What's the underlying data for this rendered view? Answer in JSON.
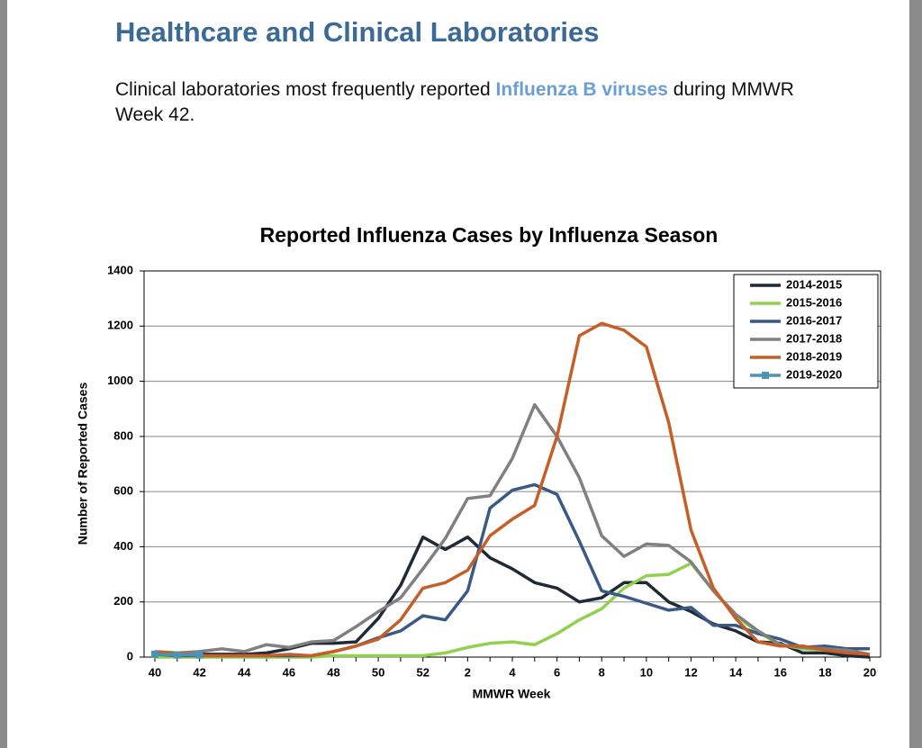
{
  "heading": "Healthcare and Clinical Laboratories",
  "paragraph": {
    "before": "Clinical laboratories most frequently reported ",
    "highlight": "Influenza B viruses",
    "after": " during MMWR Week 42."
  },
  "chart_data": {
    "type": "line",
    "title": "Reported Influenza Cases by Influenza Season",
    "x_label": "MMWR Week",
    "y_label": "Number of Reported Cases",
    "categories": [
      "40",
      null,
      "42",
      null,
      "44",
      null,
      "46",
      null,
      "48",
      null,
      "50",
      null,
      "52",
      null,
      "2",
      null,
      "4",
      null,
      "6",
      null,
      "8",
      null,
      "10",
      null,
      "12",
      null,
      "14",
      null,
      "16",
      null,
      "18",
      null,
      "20"
    ],
    "ylim": [
      0,
      1400
    ],
    "yticks": [
      0,
      200,
      400,
      600,
      800,
      1000,
      1200,
      1400
    ],
    "grid": true,
    "legend": "upper right",
    "series": [
      {
        "name": "2014-2015",
        "color": "#1f2a36",
        "values": [
          15,
          10,
          10,
          10,
          10,
          15,
          30,
          50,
          50,
          55,
          140,
          260,
          435,
          390,
          435,
          360,
          320,
          270,
          250,
          200,
          215,
          270,
          270,
          200,
          165,
          120,
          95,
          55,
          50,
          15,
          15,
          5,
          0
        ]
      },
      {
        "name": "2015-2016",
        "color": "#92d050",
        "values": [
          0,
          0,
          0,
          0,
          0,
          0,
          0,
          0,
          5,
          5,
          5,
          5,
          5,
          15,
          35,
          50,
          55,
          45,
          85,
          135,
          175,
          250,
          295,
          300,
          340,
          240,
          150,
          90,
          45,
          30,
          25,
          20,
          10
        ]
      },
      {
        "name": "2016-2017",
        "color": "#3a5a85",
        "values": [
          10,
          5,
          5,
          5,
          5,
          5,
          5,
          5,
          20,
          40,
          70,
          95,
          150,
          135,
          240,
          540,
          605,
          625,
          590,
          420,
          240,
          220,
          195,
          170,
          180,
          115,
          115,
          85,
          65,
          35,
          40,
          30,
          30
        ]
      },
      {
        "name": "2017-2018",
        "color": "#808080",
        "values": [
          15,
          15,
          20,
          30,
          20,
          45,
          35,
          55,
          60,
          110,
          165,
          215,
          320,
          430,
          575,
          585,
          720,
          915,
          800,
          650,
          440,
          365,
          410,
          405,
          345,
          240,
          155,
          95,
          45,
          35,
          30,
          25,
          10
        ]
      },
      {
        "name": "2018-2019",
        "color": "#c65f27",
        "values": [
          20,
          15,
          5,
          5,
          5,
          5,
          10,
          5,
          20,
          40,
          65,
          135,
          250,
          270,
          315,
          440,
          500,
          550,
          800,
          1165,
          1210,
          1185,
          1125,
          850,
          460,
          250,
          140,
          55,
          40,
          40,
          25,
          15,
          10
        ]
      },
      {
        "name": "2019-2020",
        "color": "#4a94b5",
        "marker": "square",
        "values": [
          10,
          8,
          8,
          null,
          null,
          null,
          null,
          null,
          null,
          null,
          null,
          null,
          null,
          null,
          null,
          null,
          null,
          null,
          null,
          null,
          null,
          null,
          null,
          null,
          null,
          null,
          null,
          null,
          null,
          null,
          null,
          null,
          null
        ]
      }
    ]
  }
}
